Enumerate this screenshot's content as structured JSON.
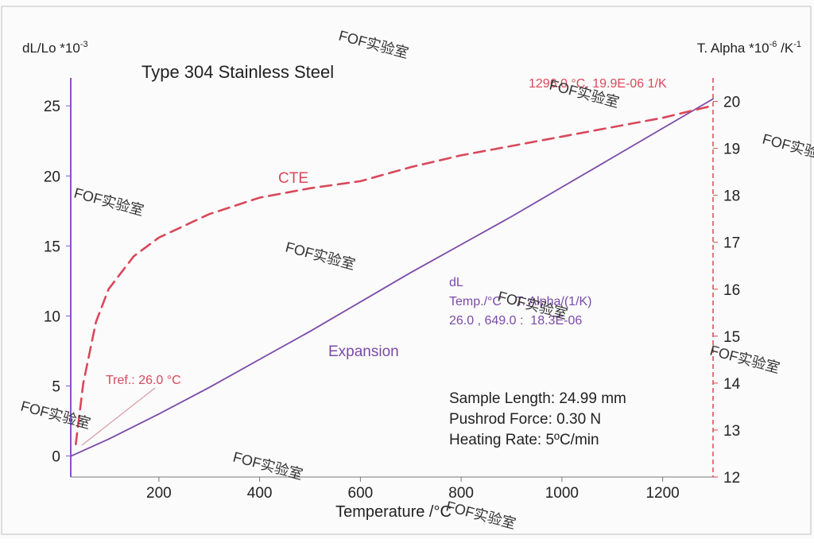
{
  "chart_data": {
    "type": "line",
    "title": "Type 304 Stainless Steel",
    "xlabel": "Temperature /°C",
    "y_left_label": "dL/Lo *10",
    "y_left_label_exp": "-3",
    "y_right_label": "T. Alpha *10",
    "y_right_label_exp": "-6",
    "y_right_label_unit": " /K",
    "y_right_label_unit_exp": "-1",
    "xlim": [
      25,
      1300
    ],
    "ylim_left": [
      -1.5,
      27
    ],
    "ylim_right": [
      12,
      20.5
    ],
    "x_ticks": [
      200,
      400,
      600,
      800,
      1000,
      1200
    ],
    "y_left_ticks": [
      0,
      5,
      10,
      15,
      20,
      25
    ],
    "y_right_ticks": [
      12,
      13,
      14,
      15,
      16,
      17,
      18,
      19,
      20
    ],
    "series": [
      {
        "name": "Expansion",
        "axis": "left",
        "color": "#7b4aa8",
        "style": "solid",
        "x": [
          26,
          100,
          200,
          300,
          400,
          500,
          600,
          700,
          800,
          900,
          1000,
          1100,
          1200,
          1300
        ],
        "y": [
          0,
          1.2,
          3.0,
          4.9,
          6.9,
          8.9,
          11.0,
          13.1,
          15.1,
          17.1,
          19.2,
          21.3,
          23.4,
          25.5
        ]
      },
      {
        "name": "CTE",
        "axis": "right",
        "color": "#d9485a",
        "style": "dashed",
        "x": [
          35,
          50,
          75,
          100,
          150,
          200,
          300,
          400,
          500,
          600,
          700,
          800,
          900,
          1000,
          1100,
          1200,
          1296
        ],
        "y": [
          12.7,
          14.0,
          15.3,
          16.0,
          16.7,
          17.1,
          17.6,
          17.95,
          18.15,
          18.3,
          18.6,
          18.85,
          19.05,
          19.25,
          19.45,
          19.65,
          19.9
        ]
      }
    ],
    "annotations": {
      "cte_label": "CTE",
      "expansion_label": "Expansion",
      "end_point": "1296.0 °C, 19.9E-06 1/K",
      "tref": "Tref.: 26.0 °C",
      "readout_header": "dL",
      "readout_columns": "Temp./°C    T. Alpha/(1/K)",
      "readout_values": "26.0 , 649.0 :  18.3E-06"
    },
    "info": {
      "sample_length": "Sample Length: 24.99 mm",
      "pushrod_force": "Pushrod Force: 0.30 N",
      "heating_rate": "Heating Rate: 5ºC/min"
    },
    "watermark": "FOF实验室",
    "grid": false
  }
}
